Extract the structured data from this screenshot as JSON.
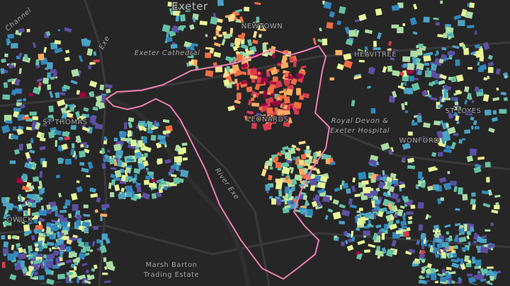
{
  "map": {
    "labels": {
      "city": "Exeter",
      "newtown": "NEWTOWN",
      "cathedral": "Exeter Cathedral",
      "heavitree": "HEAVITREE",
      "st_thomas": "ST THOMAS",
      "st_leonards": "LEONARDS",
      "hospital_1": "Royal Devon &",
      "hospital_2": "Exeter Hospital",
      "st_loyes": "ST LOYES",
      "wonford": "WONFORD",
      "river": "River Exe",
      "marsh_1": "Marsh Barton",
      "marsh_2": "Trading Estate",
      "exe": "Exe",
      "channel": "Channel",
      "owick": "OWICK"
    }
  }
}
